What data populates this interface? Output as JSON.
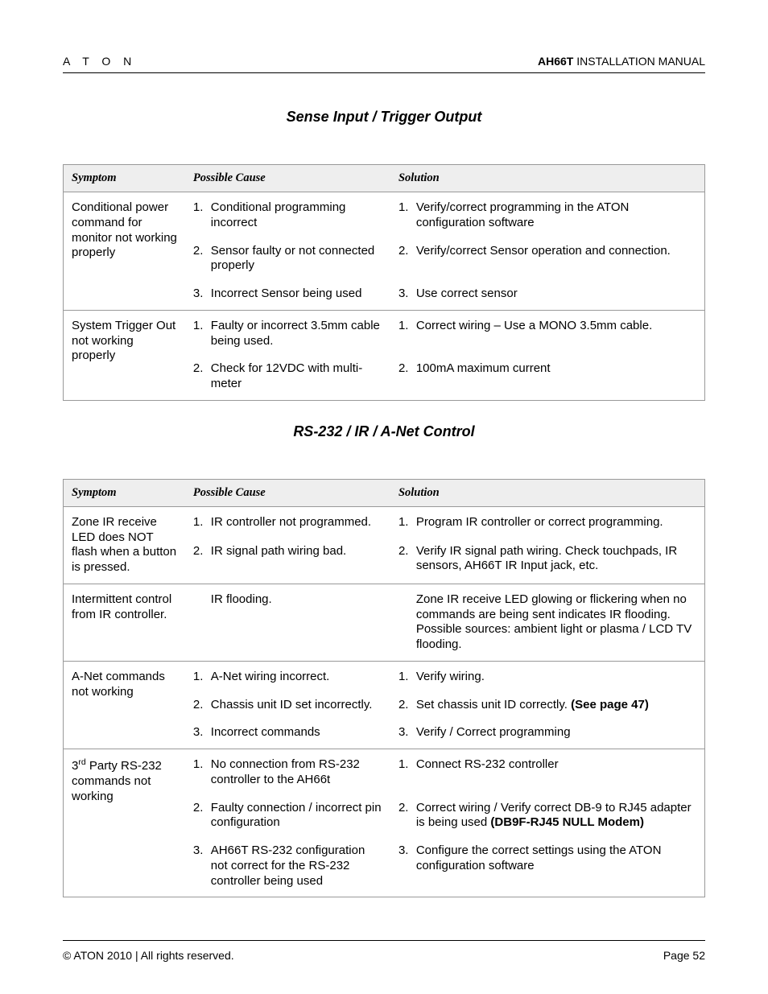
{
  "header": {
    "brand": "A T O N",
    "model": "AH66T",
    "doc_type": " INSTALLATION MANUAL"
  },
  "sections": [
    {
      "title": "Sense Input / Trigger Output",
      "headers": {
        "symptom": "Symptom",
        "cause": "Possible Cause",
        "solution": "Solution"
      },
      "groups": [
        {
          "symptom": "Conditional power command for monitor not working properly",
          "rows": [
            {
              "n": "1.",
              "cause": "Conditional programming incorrect",
              "sn": "1.",
              "solution": "Verify/correct programming in the ATON configuration software"
            },
            {
              "n": "2.",
              "cause": "Sensor faulty or not connected properly",
              "sn": "2.",
              "solution": "Verify/correct Sensor operation and connection."
            },
            {
              "n": "3.",
              "cause": "Incorrect Sensor being used",
              "sn": "3.",
              "solution": "Use correct sensor"
            }
          ]
        },
        {
          "symptom": "System Trigger Out not working properly",
          "rows": [
            {
              "n": "1.",
              "cause": "Faulty or incorrect 3.5mm cable being used.",
              "sn": "1.",
              "solution": "Correct wiring – Use a MONO 3.5mm cable."
            },
            {
              "n": "2.",
              "cause": "Check for 12VDC with multi-meter",
              "sn": "2.",
              "solution": "100mA maximum current"
            }
          ]
        }
      ]
    },
    {
      "title": "RS-232 / IR / A-Net Control",
      "headers": {
        "symptom": "Symptom",
        "cause": "Possible Cause",
        "solution": "Solution"
      },
      "groups": [
        {
          "symptom": "Zone IR receive LED does NOT flash when a button is pressed.",
          "rows": [
            {
              "n": "1.",
              "cause": "IR controller not programmed.",
              "sn": "1.",
              "solution": "Program IR controller or correct programming."
            },
            {
              "n": "2.",
              "cause": "IR signal path wiring bad.",
              "sn": "2.",
              "solution": "Verify IR signal path wiring.  Check touchpads, IR sensors, AH66T IR Input jack, etc."
            }
          ]
        },
        {
          "symptom": "Intermittent control from IR controller.",
          "rows": [
            {
              "n": "",
              "cause": "IR flooding.",
              "sn": "",
              "solution": "Zone IR receive LED glowing or flickering when no commands are being sent indicates IR flooding.  Possible sources: ambient light or plasma / LCD TV flooding."
            }
          ]
        },
        {
          "symptom": "A-Net commands not working",
          "rows": [
            {
              "n": "1.",
              "cause": "A-Net wiring incorrect.",
              "sn": "1.",
              "solution": "Verify wiring."
            },
            {
              "n": "2.",
              "cause": "Chassis unit ID set incorrectly.",
              "sn": "2.",
              "solution_html": "Set chassis unit ID correctly.  <span class=\"bold\">(See page 47)</span>"
            },
            {
              "n": "3.",
              "cause": "Incorrect commands",
              "sn": "3.",
              "solution": "Verify / Correct programming"
            }
          ]
        },
        {
          "symptom_html": "3<sup>rd</sup> Party RS-232 commands not working",
          "rows": [
            {
              "n": "1.",
              "cause": "No connection from RS-232 controller to the AH66t",
              "sn": "1.",
              "solution": "Connect RS-232 controller"
            },
            {
              "n": "2.",
              "cause": "Faulty connection / incorrect pin configuration",
              "sn": "2.",
              "solution_html": "Correct wiring / Verify correct DB-9 to RJ45 adapter is being used <span class=\"bold\">(DB9F-RJ45 NULL Modem)</span>"
            },
            {
              "n": "3.",
              "cause": "AH66T RS-232 configuration not correct for the RS-232 controller being used",
              "sn": "3.",
              "solution": "Configure the correct settings using the ATON configuration software"
            }
          ]
        }
      ]
    }
  ],
  "footer": {
    "copyright": "© ATON 2010 | All rights reserved.",
    "page": "Page 52"
  }
}
